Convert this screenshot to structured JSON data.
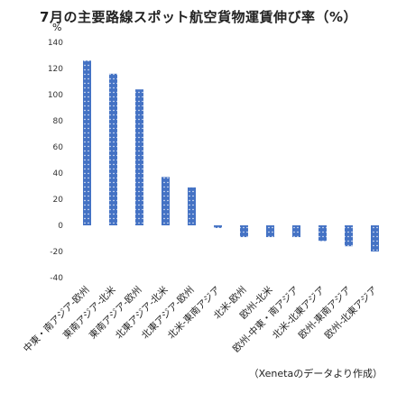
{
  "chart_data": {
    "type": "bar",
    "title": "7月の主要路線スポット航空貨物運賃伸び率（%）",
    "ylabel": "%",
    "xlabel": "",
    "ylim": [
      -40,
      140
    ],
    "yticks": [
      140,
      120,
      100,
      80,
      60,
      40,
      20,
      0,
      -20,
      -40
    ],
    "grid": false,
    "legend": "none",
    "categories": [
      "中東・南アジア-欧州",
      "東南アジア-北米",
      "東南アジア-欧州",
      "北東アジア-北米",
      "北東アジア-欧州",
      "北米-東南アジア",
      "北米-欧州",
      "欧州-北米",
      "欧州-中東・南アジア",
      "北米-北東アジア",
      "欧州-東南アジア",
      "欧州-北東アジア"
    ],
    "values": [
      126,
      116,
      104,
      37,
      29,
      -2,
      -9,
      -9,
      -9,
      -12,
      -16,
      -20
    ],
    "bar_color": "#4472C4",
    "note": "（Xenetaのデータより作成）"
  }
}
